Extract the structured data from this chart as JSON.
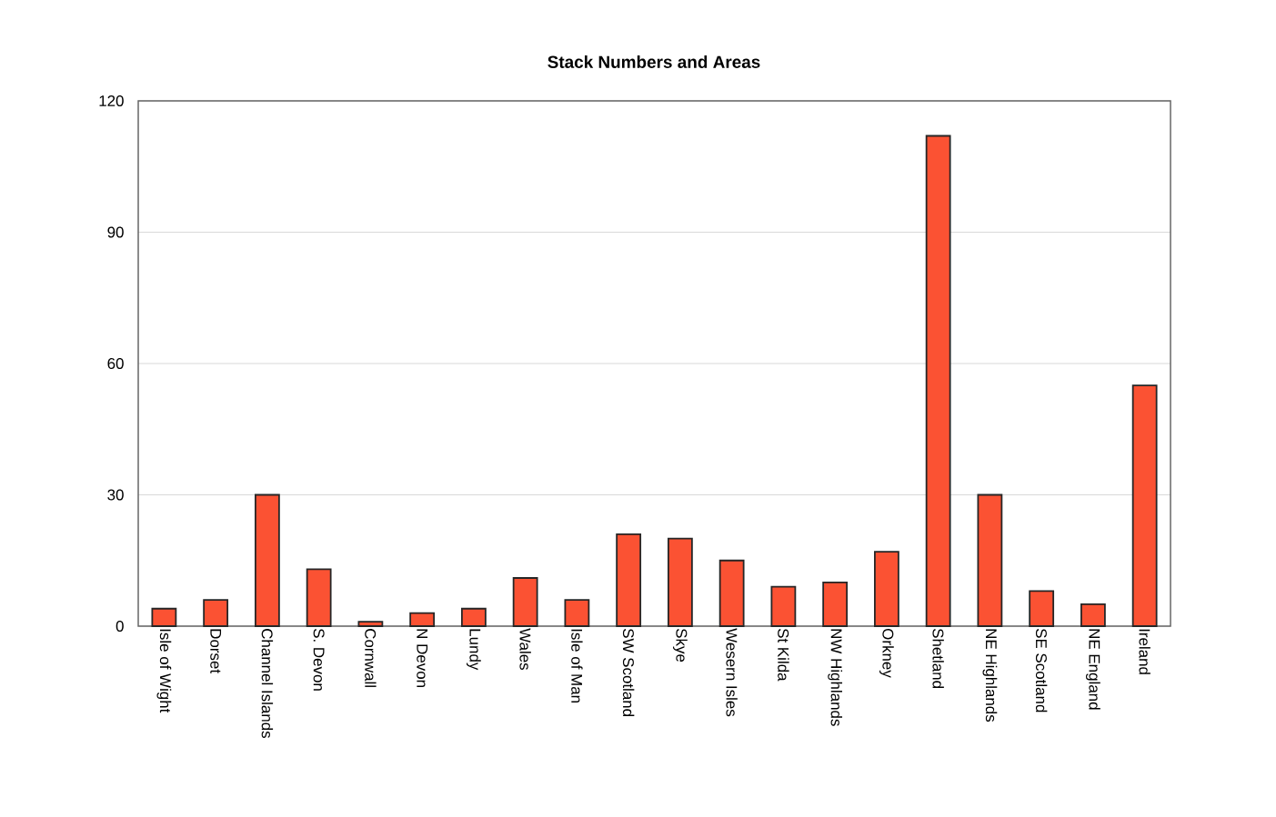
{
  "chart_data": {
    "type": "bar",
    "title": "Stack Numbers and Areas",
    "categories": [
      "Isle of Wight",
      "Dorset",
      "Channel Islands",
      "S. Devon",
      "Cornwall",
      "N Devon",
      "Lundy",
      "Wales",
      "Isle of Man",
      "SW Scotland",
      "Skye",
      "Wesern Isles",
      "St Kilda",
      "NW Highlands",
      "Orkney",
      "Shetland",
      "NE Highlands",
      "SE Scotland",
      "NE England",
      "Ireland"
    ],
    "values": [
      4,
      6,
      30,
      13,
      1,
      3,
      4,
      11,
      6,
      21,
      20,
      15,
      9,
      10,
      17,
      112,
      30,
      8,
      5,
      55
    ],
    "color": "#fb5233",
    "ylim": [
      0,
      120
    ],
    "yticks": [
      0,
      30,
      60,
      90,
      120
    ],
    "grid": "y"
  }
}
